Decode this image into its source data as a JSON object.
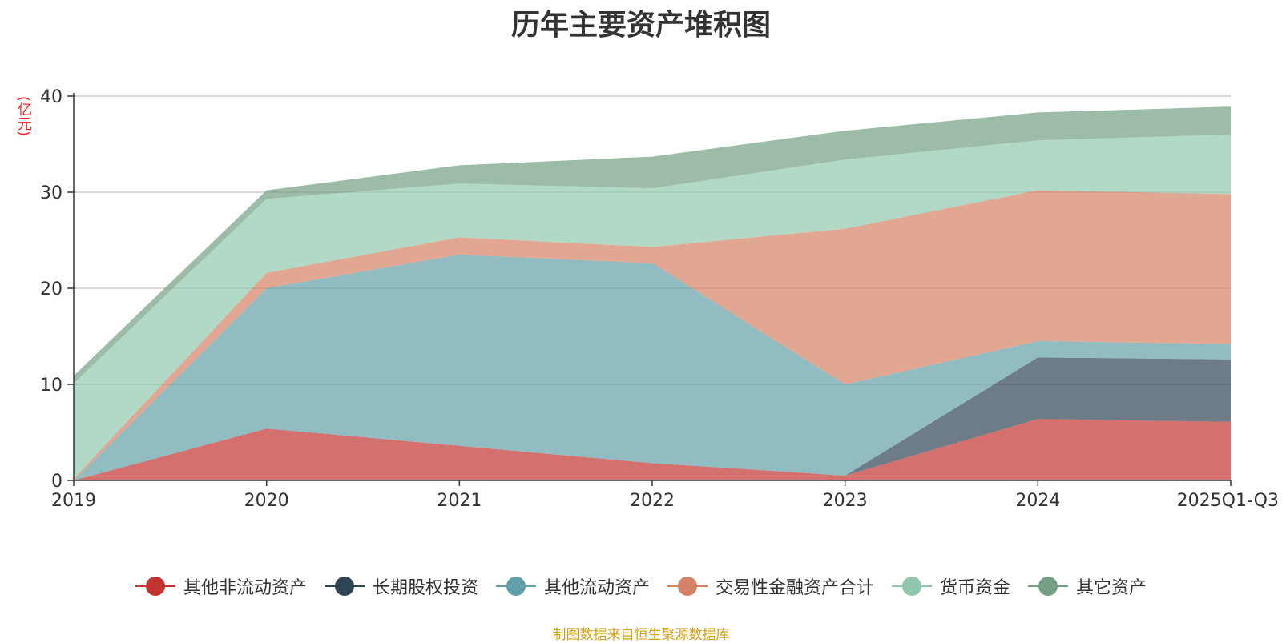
{
  "chart_data": {
    "type": "area",
    "stacked": true,
    "title": "历年主要资产堆积图",
    "ylabel": "(亿元)",
    "xlabel": "",
    "categories": [
      "2019",
      "2020",
      "2021",
      "2022",
      "2023",
      "2024",
      "2025Q1-Q3"
    ],
    "ylim": [
      0,
      40
    ],
    "yticks": [
      0,
      10,
      20,
      30,
      40
    ],
    "grid": true,
    "legend_position": "bottom",
    "series": [
      {
        "name": "其他非流动资产",
        "color": "#c23531",
        "values": [
          0.0,
          5.4,
          3.6,
          1.8,
          0.5,
          6.4,
          6.1
        ]
      },
      {
        "name": "长期股权投资",
        "color": "#2f4554",
        "values": [
          0.0,
          0.0,
          0.0,
          0.0,
          0.0,
          6.4,
          6.5
        ]
      },
      {
        "name": "其他流动资产",
        "color": "#61a0a8",
        "values": [
          0.0,
          14.6,
          19.9,
          20.8,
          9.5,
          1.7,
          1.6
        ]
      },
      {
        "name": "交易性金融资产合计",
        "color": "#d48265",
        "values": [
          0.2,
          1.6,
          1.8,
          1.7,
          16.2,
          15.7,
          15.6
        ]
      },
      {
        "name": "货币资金",
        "color": "#91c7ae",
        "values": [
          9.9,
          7.7,
          5.6,
          6.1,
          7.2,
          5.2,
          6.2
        ]
      },
      {
        "name": "其它资产",
        "color": "#749f83",
        "values": [
          0.8,
          0.9,
          1.9,
          3.3,
          3.0,
          2.9,
          2.9
        ]
      }
    ],
    "source": "制图数据来自恒生聚源数据库"
  }
}
